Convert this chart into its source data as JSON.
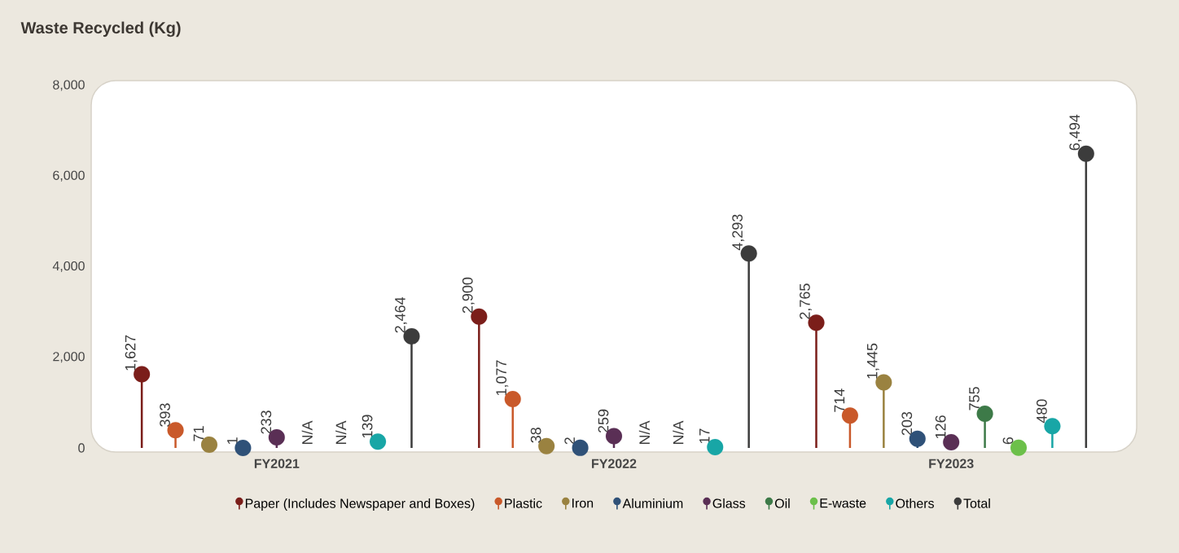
{
  "chart_data": {
    "type": "lollipop",
    "title": "Waste Recycled (Kg)",
    "categories": [
      "FY2021",
      "FY2022",
      "FY2023"
    ],
    "series": [
      {
        "name": "Paper (Includes Newspaper and Boxes)",
        "color": "#7b1e1a",
        "values": [
          1627,
          2900,
          2765
        ],
        "value_labels": [
          "1,627",
          "2,900",
          "2,765"
        ]
      },
      {
        "name": "Plastic",
        "color": "#c9592a",
        "values": [
          393,
          1077,
          714
        ],
        "value_labels": [
          "393",
          "1,077",
          "714"
        ]
      },
      {
        "name": "Iron",
        "color": "#9a8240",
        "values": [
          71,
          38,
          1445
        ],
        "value_labels": [
          "71",
          "38",
          "1,445"
        ]
      },
      {
        "name": "Aluminium",
        "color": "#2f5178",
        "values": [
          1,
          2,
          203
        ],
        "value_labels": [
          "1",
          "2",
          "203"
        ]
      },
      {
        "name": "Glass",
        "color": "#5a2f55",
        "values": [
          233,
          259,
          126
        ],
        "value_labels": [
          "233",
          "259",
          "126"
        ]
      },
      {
        "name": "Oil",
        "color": "#3d7a48",
        "values": [
          null,
          null,
          755
        ],
        "value_labels": [
          "N/A",
          "N/A",
          "755"
        ]
      },
      {
        "name": "E-waste",
        "color": "#6cc04a",
        "values": [
          null,
          null,
          6
        ],
        "value_labels": [
          "N/A",
          "N/A",
          "6"
        ]
      },
      {
        "name": "Others",
        "color": "#18a6a6",
        "values": [
          139,
          17,
          480
        ],
        "value_labels": [
          "139",
          "17",
          "480"
        ]
      },
      {
        "name": "Total",
        "color": "#3c3c3c",
        "values": [
          2464,
          4293,
          6494
        ],
        "value_labels": [
          "2,464",
          "4,293",
          "6,494"
        ]
      }
    ],
    "ylim": [
      0,
      8000
    ],
    "yticks": [
      0,
      {
        "value": 2000,
        "label": "2,000"
      },
      {
        "value": 4000,
        "label": "4,000"
      },
      {
        "value": 6000,
        "label": "6,000"
      },
      {
        "value": 8000,
        "label": "8,000"
      }
    ],
    "legend": "bottom",
    "marker": "circle"
  }
}
